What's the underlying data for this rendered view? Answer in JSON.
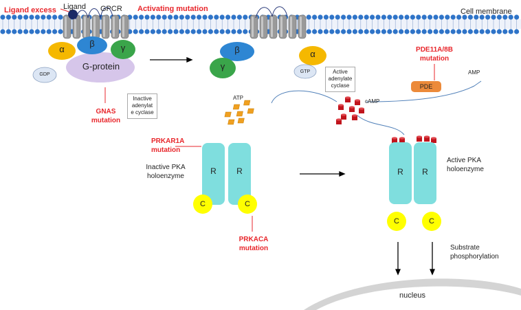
{
  "labels": {
    "ligand_excess": "Ligand excess",
    "ligand": "Ligand",
    "gpcr": "GPCR",
    "activating_mutation": "Activating mutation",
    "cell_membrane": "Cell membrane",
    "alpha": "α",
    "beta": "β",
    "gamma": "γ",
    "g_protein": "G-protein",
    "gdp": "GDP",
    "gtp": "GTP",
    "gnas_mutation_1": "GNAS",
    "gnas_mutation_2": "mutation",
    "inactive_cyclase": "Inactive adenylat e cyclase",
    "active_cyclase": "Active adenylate cyclase",
    "pde_mutation_1": "PDE11A/8B",
    "pde_mutation_2": "mutation",
    "pde": "PDE",
    "amp": "AMP",
    "atp": "ATP",
    "camp": "cAMP",
    "prkar1a_1": "PRKAR1A",
    "prkar1a_2": "mutation",
    "inactive_pka_1": "Inactive PKA",
    "inactive_pka_2": "holoenzyme",
    "active_pka_1": "Active PKA",
    "active_pka_2": "holoenzyme",
    "r": "R",
    "c": "C",
    "prkaca_1": "PRKACA",
    "prkaca_2": "mutation",
    "substrate_1": "Substrate",
    "substrate_2": "phosphorylation",
    "nucleus": "nucleus"
  },
  "colors": {
    "membrane_bead": "#2f74c8",
    "helix": "#9a9a9a",
    "alpha": "#f5b800",
    "beta": "#2e86d3",
    "gamma": "#3aa54a",
    "g_protein": "#d6c6ea",
    "small_oval": "#dce6f4",
    "pde": "#ec8a3a",
    "atp": "#f0a020",
    "camp": "#c0141c",
    "r_subunit": "#7fdede",
    "c_subunit": "#ffff00",
    "mutation_red": "#e8262b",
    "nucleus": "#c8c8c8"
  }
}
